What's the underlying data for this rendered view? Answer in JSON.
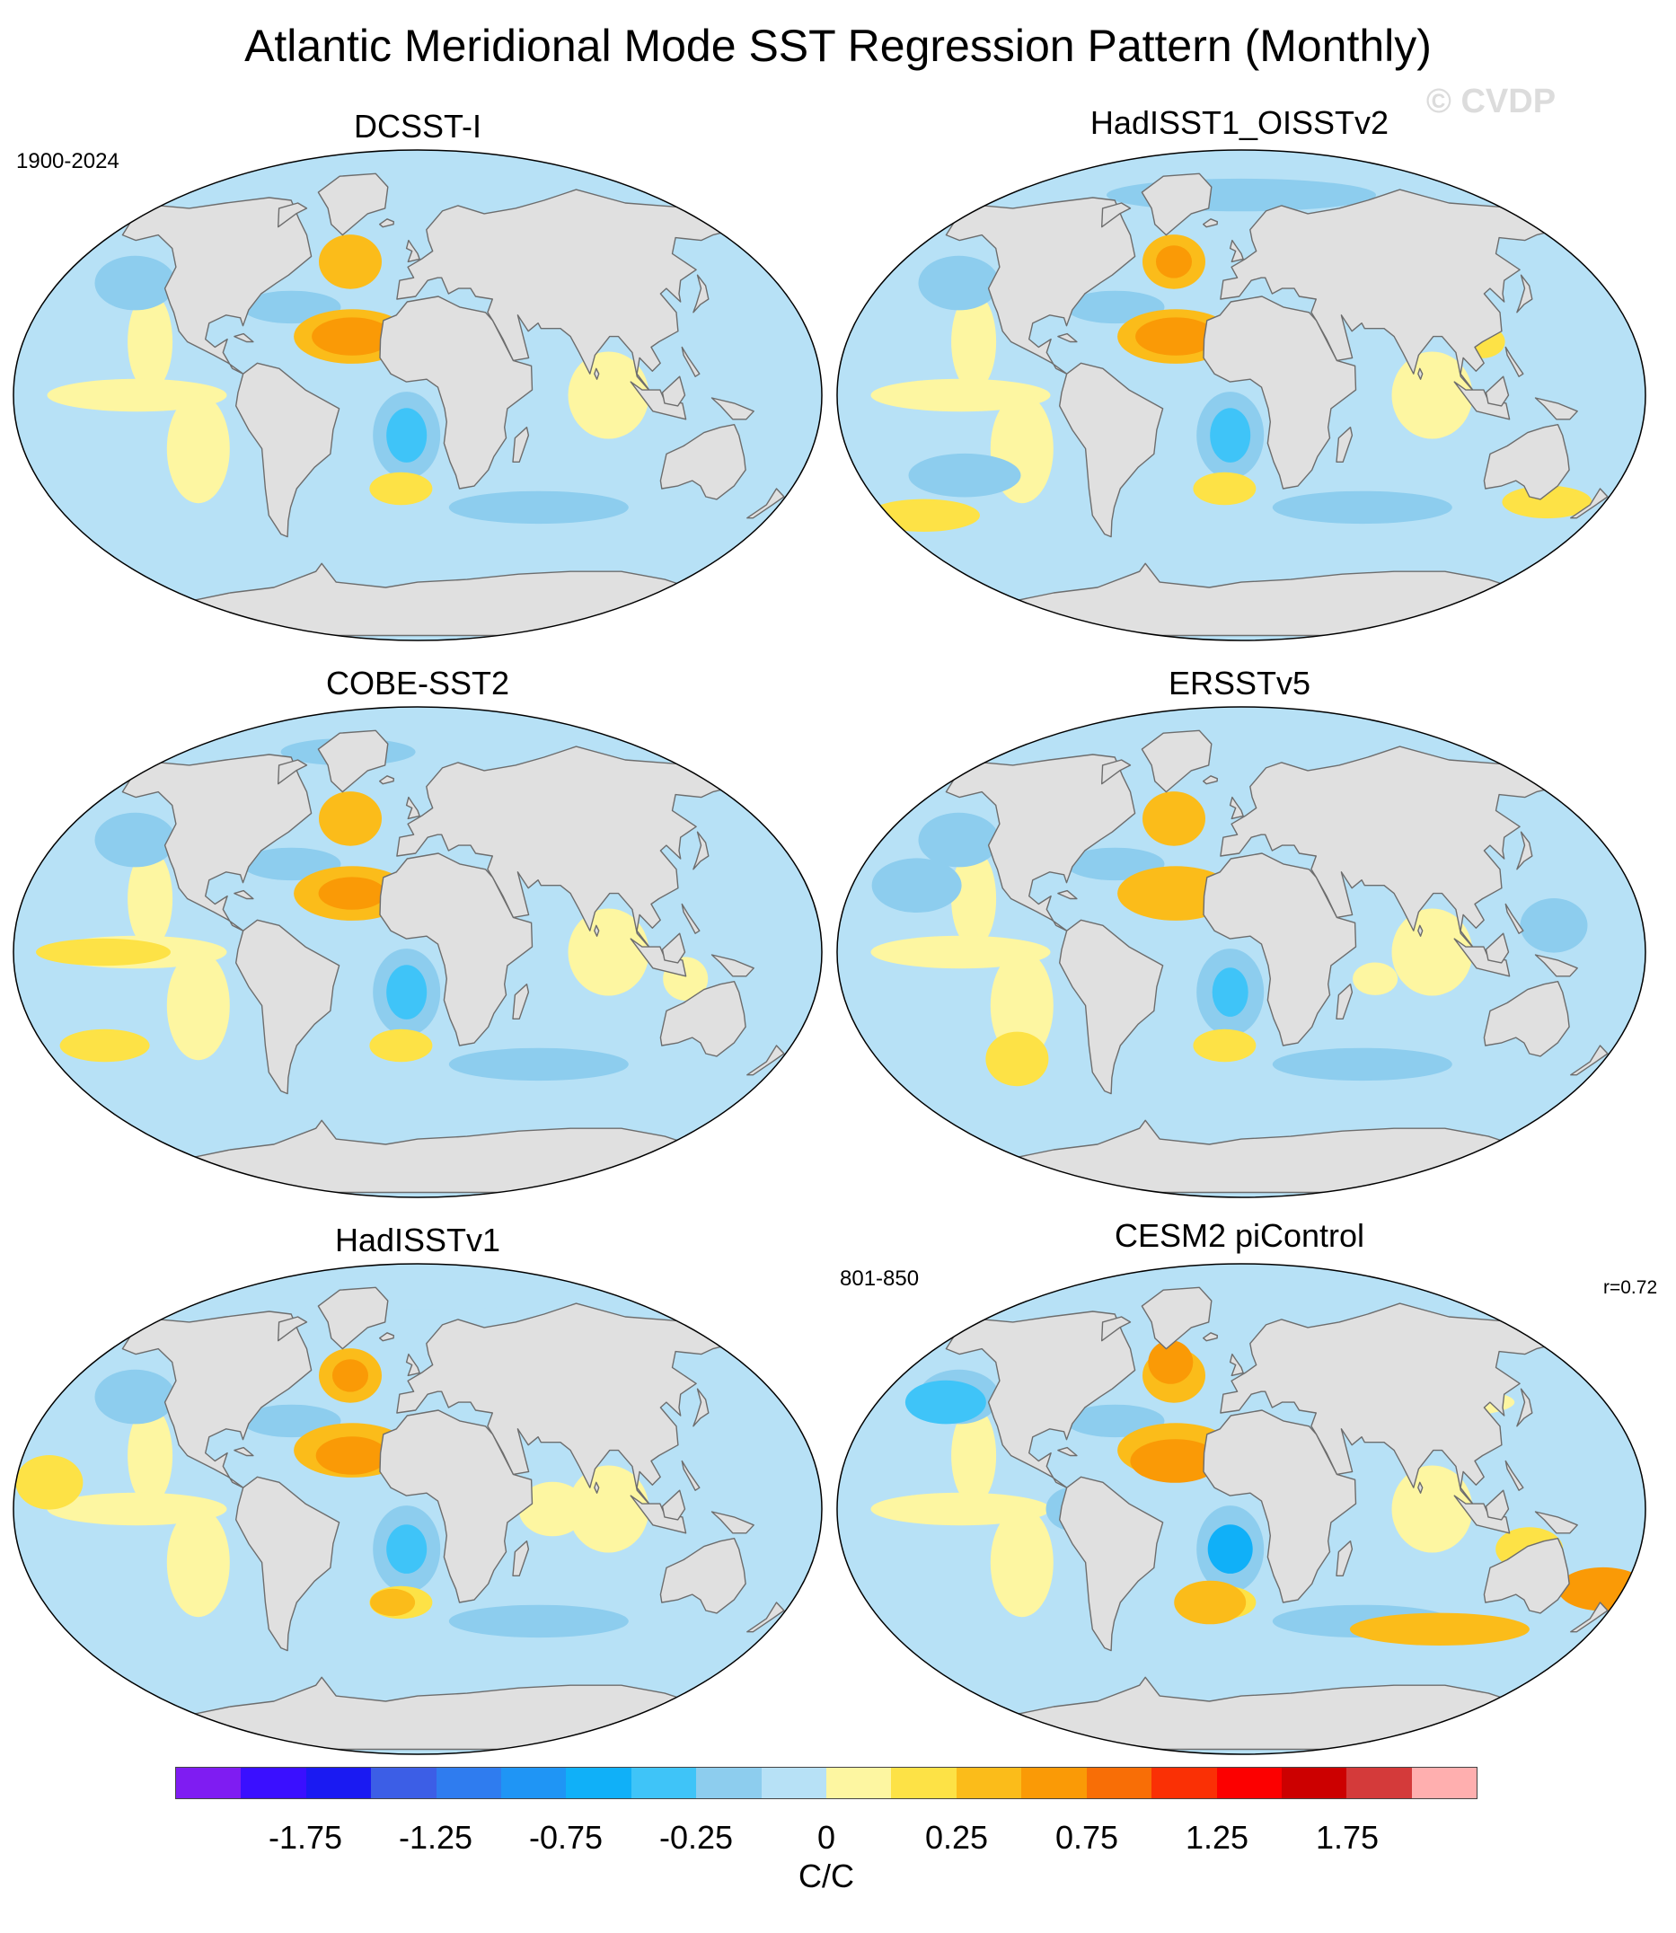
{
  "title": "Atlantic Meridional Mode SST Regression Pattern (Monthly)",
  "watermark": "© CVDP",
  "colors": {
    "land": "#e0e0e0",
    "coast": "#6d6d6d",
    "border": "#000000"
  },
  "panels": [
    {
      "title": "DCSST-I",
      "left_label": "1900-2024",
      "right_label": ""
    },
    {
      "title": "HadISST1_OISSTv2",
      "left_label": "",
      "right_label": ""
    },
    {
      "title": "COBE-SST2",
      "left_label": "",
      "right_label": ""
    },
    {
      "title": "ERSSTv5",
      "left_label": "",
      "right_label": ""
    },
    {
      "title": "HadISSTv1",
      "left_label": "",
      "right_label": ""
    },
    {
      "title": "CESM2 piControl",
      "left_label": "801-850",
      "right_label": "r=0.72"
    }
  ],
  "colorbar": {
    "units": "C/C",
    "colors": [
      "#7f1cf2",
      "#3a0fff",
      "#1a1af2",
      "#3c5ee6",
      "#2f7cef",
      "#1f95f5",
      "#10b0f8",
      "#3fc4f8",
      "#8dcdee",
      "#b7e1f6",
      "#fdf6a1",
      "#fde246",
      "#fbbc1a",
      "#fa9a06",
      "#f86e06",
      "#fa3005",
      "#fc0000",
      "#cc0000",
      "#d43a3a",
      "#ffafaf"
    ],
    "tick_labels": [
      "-1.75",
      "-1.25",
      "-0.75",
      "-0.25",
      "0",
      "0.25",
      "0.75",
      "1.25",
      "1.75"
    ]
  }
}
